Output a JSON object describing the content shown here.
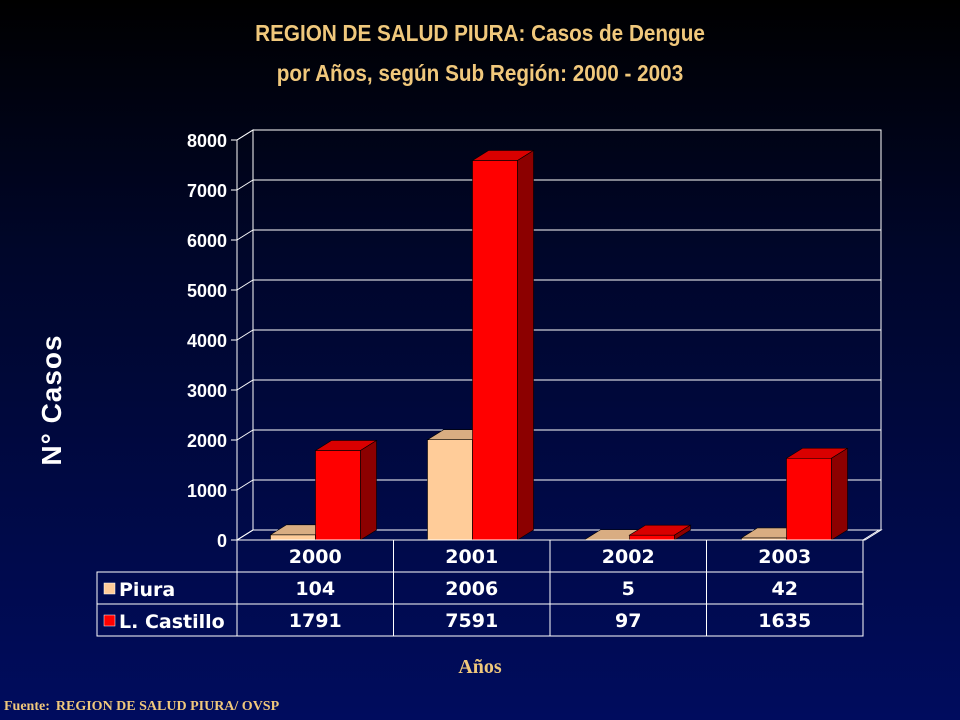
{
  "title_line1": "REGION DE SALUD PIURA: Casos de Dengue",
  "title_line2": "por Años, según Sub Región: 2000 - 2003",
  "source_label": "Fuente:",
  "source_text": "REGION DE SALUD PIURA/ OVSP",
  "colors": {
    "background": "#000c5e",
    "title": "#f0c87c",
    "piura": "#ffcc99",
    "castillo": "#ff0000",
    "grid": "#ffffff"
  },
  "chart_data": {
    "type": "bar",
    "categories": [
      "2000",
      "2001",
      "2002",
      "2003"
    ],
    "series": [
      {
        "name": "Piura",
        "values": [
          104,
          2006,
          5,
          42
        ],
        "color": "#ffcc99"
      },
      {
        "name": "L. Castillo",
        "values": [
          1791,
          7591,
          97,
          1635
        ],
        "color": "#ff0000"
      }
    ],
    "yticks": [
      0,
      1000,
      2000,
      3000,
      4000,
      5000,
      6000,
      7000,
      8000
    ],
    "ylim": [
      0,
      8000
    ],
    "ylabel": "N° Casos",
    "xlabel": "Años",
    "grid": true,
    "three_d": true,
    "data_table": true,
    "legend_placement": "data-table"
  }
}
